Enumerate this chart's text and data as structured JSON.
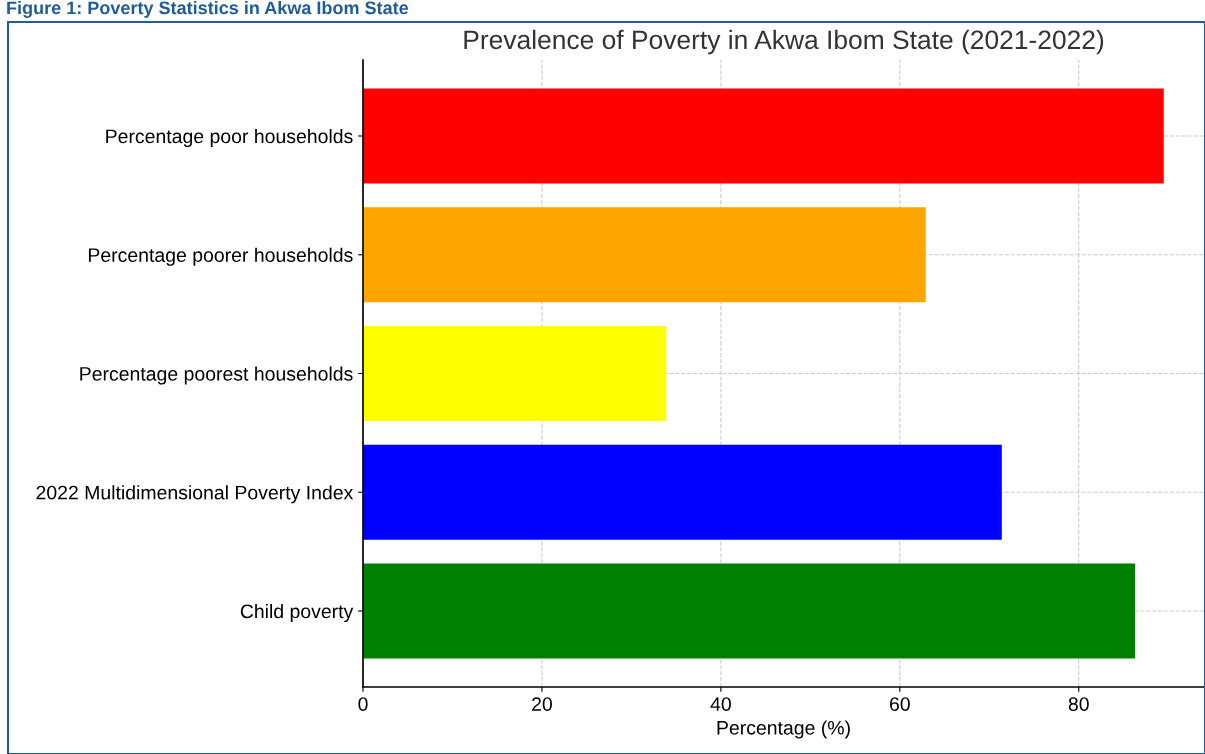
{
  "chart_data": {
    "type": "bar",
    "orientation": "horizontal",
    "title": "Prevalence of Poverty in Akwa Ibom State (2021-2022)",
    "xlabel": "Percentage (%)",
    "annotations": [
      "Figure 1: Poverty Statistics in Akwa Ibom State"
    ],
    "categories": [
      "Percentage poor households",
      "Percentage poorer households",
      "Percentage poorest households",
      "2022 Multidimensional Poverty Index",
      "Child poverty"
    ],
    "values": [
      89.5,
      62.9,
      33.9,
      71.4,
      86.3
    ],
    "colors": [
      "#ff0000",
      "#ffa500",
      "#ffff00",
      "#0000ff",
      "#008000"
    ],
    "xlim": [
      0,
      94
    ],
    "xticks": [
      0,
      20,
      40,
      60,
      80
    ],
    "grid": true
  }
}
